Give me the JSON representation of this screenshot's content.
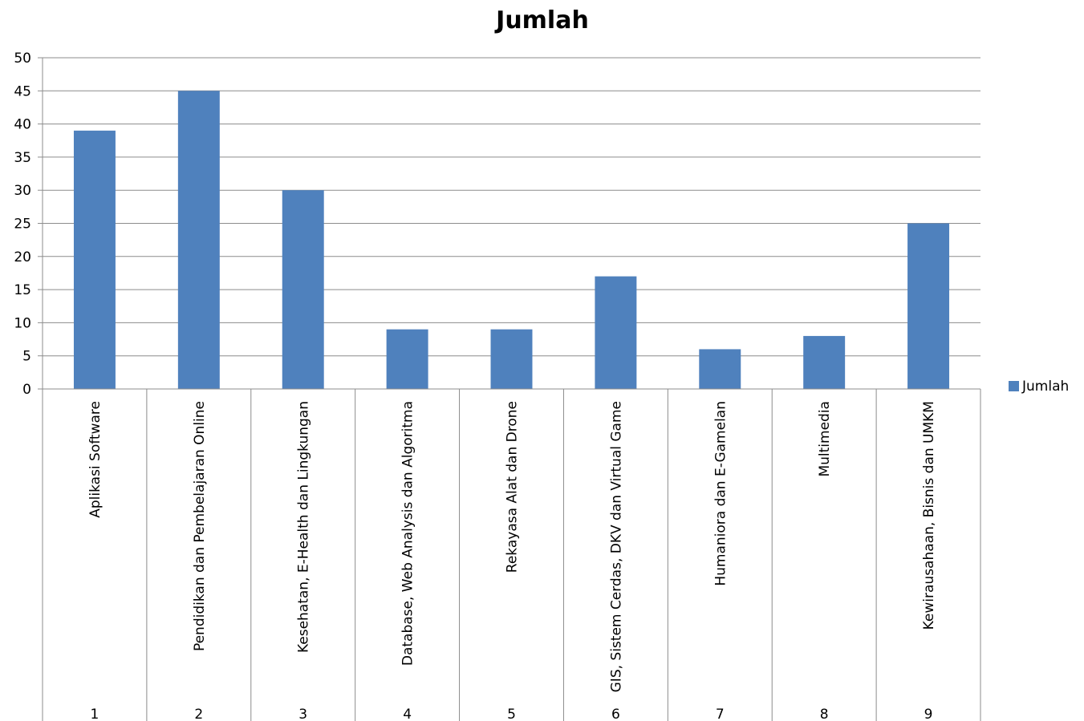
{
  "chart_data": {
    "type": "bar",
    "title": "Jumlah",
    "series": [
      {
        "name": "Jumlah",
        "values": [
          39,
          45,
          30,
          9,
          9,
          17,
          6,
          8,
          25
        ],
        "color": "#4F81BD"
      }
    ],
    "categories": [
      {
        "label": "Aplikasi Software",
        "number": "1"
      },
      {
        "label": "Pendidikan dan Pembelajaran Online",
        "number": "2"
      },
      {
        "label": "Kesehatan, E-Health dan Lingkungan",
        "number": "3"
      },
      {
        "label": "Database, Web Analysis dan Algoritma",
        "number": "4"
      },
      {
        "label": "Rekayasa Alat dan Drone",
        "number": "5"
      },
      {
        "label": "GIS, Sistem Cerdas, DKV dan Virtual Game",
        "number": "6"
      },
      {
        "label": "Humaniora dan E-Gamelan",
        "number": "7"
      },
      {
        "label": "Multimedia",
        "number": "8"
      },
      {
        "label": "Kewirausahaan, Bisnis dan UMKM",
        "number": "9"
      }
    ],
    "ylim": [
      0,
      50
    ],
    "yticks": [
      0,
      5,
      10,
      15,
      20,
      25,
      30,
      35,
      40,
      45,
      50
    ],
    "grid": true,
    "legend": {
      "position": "right",
      "entries": [
        "Jumlah"
      ]
    }
  }
}
